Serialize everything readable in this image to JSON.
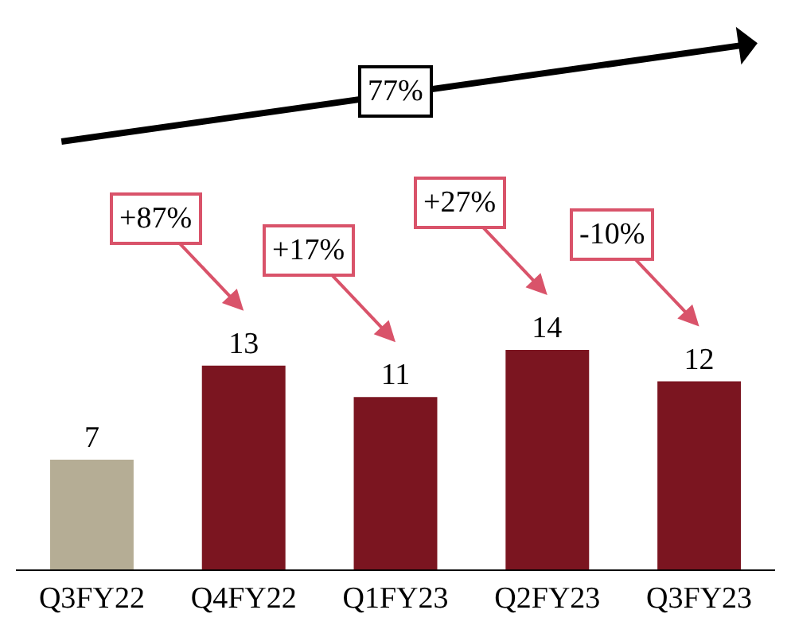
{
  "chart_data": {
    "type": "bar",
    "categories": [
      "Q3FY22",
      "Q4FY22",
      "Q1FY23",
      "Q2FY23",
      "Q3FY23"
    ],
    "values": [
      7,
      13,
      11,
      14,
      12
    ],
    "colors": [
      "#b5ad95",
      "#7b1520",
      "#7b1520",
      "#7b1520",
      "#7b1520"
    ],
    "data_labels": true,
    "annotations": [
      "77%",
      "+87%",
      "+17%",
      "+27%",
      "-10%"
    ]
  }
}
